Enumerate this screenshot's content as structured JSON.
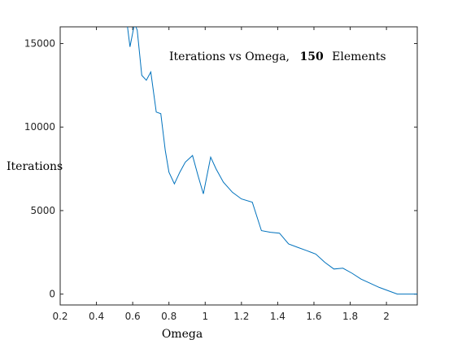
{
  "chart_data": {
    "type": "line",
    "title_parts": [
      "Iterations vs Omega,",
      "150",
      "Elements"
    ],
    "xlabel": "Omega",
    "ylabel": "Iterations",
    "xlim": [
      0.2,
      2.17
    ],
    "ylim": [
      -650,
      16000
    ],
    "x_ticks": [
      0.2,
      0.4,
      0.6,
      0.8,
      1.0,
      1.2,
      1.4,
      1.6,
      1.8,
      2.0
    ],
    "x_tick_labels": [
      "0.2",
      "0.4",
      "0.6",
      "0.8",
      "1",
      "1.2",
      "1.4",
      "1.6",
      "1.8",
      "2"
    ],
    "y_ticks": [
      0,
      5000,
      10000,
      15000
    ],
    "y_tick_labels": [
      "0",
      "5000",
      "10000",
      "15000"
    ],
    "grid": false,
    "line_color": "#0072bd",
    "series": [
      {
        "x": [
          0.57,
          0.585,
          0.61,
          0.625,
          0.65,
          0.675,
          0.7,
          0.73,
          0.755,
          0.78,
          0.8,
          0.83,
          0.86,
          0.89,
          0.93,
          0.96,
          0.99,
          1.03,
          1.06,
          1.1,
          1.15,
          1.2,
          1.26,
          1.31,
          1.36,
          1.41,
          1.46,
          1.51,
          1.56,
          1.61,
          1.66,
          1.71,
          1.76,
          1.81,
          1.86,
          1.91,
          1.96,
          2.01,
          2.06,
          2.11,
          2.17
        ],
        "y": [
          16100,
          14800,
          16200,
          15800,
          13100,
          12800,
          13300,
          10900,
          10800,
          8600,
          7300,
          6600,
          7300,
          7900,
          8300,
          7100,
          6000,
          8200,
          7500,
          6700,
          6100,
          5700,
          5500,
          3800,
          3700,
          3650,
          3000,
          2800,
          2600,
          2400,
          1900,
          1500,
          1550,
          1250,
          900,
          650,
          400,
          200,
          0,
          0,
          0
        ]
      }
    ]
  }
}
